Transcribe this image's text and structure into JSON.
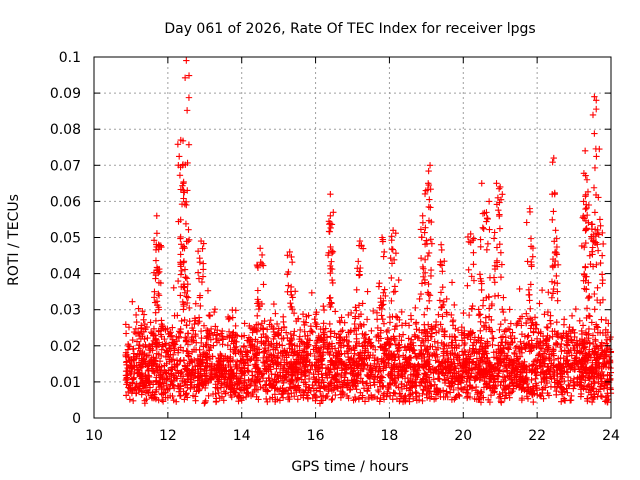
{
  "chart_data": {
    "type": "scatter",
    "title": "Day 061 of 2026, Rate Of TEC Index for receiver lpgs",
    "xlabel": "GPS time / hours",
    "ylabel": "ROTI / TECUs",
    "xlim": [
      10,
      24
    ],
    "ylim": [
      0,
      0.1
    ],
    "x_ticks": [
      "10",
      "12",
      "14",
      "16",
      "18",
      "20",
      "22",
      "24"
    ],
    "y_ticks": [
      "0",
      "0.01",
      "0.02",
      "0.03",
      "0.04",
      "0.05",
      "0.06",
      "0.07",
      "0.08",
      "0.09",
      "0.1"
    ],
    "grid": true,
    "marker": "+",
    "series_color": "#ff0000",
    "x_start": 10.85,
    "x_end": 24.0,
    "typical_range": [
      0.004,
      0.03
    ],
    "peaks": [
      {
        "x": 12.5,
        "y": 0.099
      },
      {
        "x": 12.35,
        "y": 0.077
      },
      {
        "x": 12.4,
        "y": 0.07
      },
      {
        "x": 12.42,
        "y": 0.065
      },
      {
        "x": 12.5,
        "y": 0.059
      },
      {
        "x": 11.7,
        "y": 0.056
      },
      {
        "x": 11.75,
        "y": 0.048
      },
      {
        "x": 12.9,
        "y": 0.049
      },
      {
        "x": 14.5,
        "y": 0.047
      },
      {
        "x": 15.3,
        "y": 0.046
      },
      {
        "x": 16.4,
        "y": 0.062
      },
      {
        "x": 16.4,
        "y": 0.056
      },
      {
        "x": 17.2,
        "y": 0.049
      },
      {
        "x": 17.8,
        "y": 0.05
      },
      {
        "x": 18.1,
        "y": 0.052
      },
      {
        "x": 18.9,
        "y": 0.056
      },
      {
        "x": 19.1,
        "y": 0.07
      },
      {
        "x": 19.05,
        "y": 0.065
      },
      {
        "x": 19.4,
        "y": 0.048
      },
      {
        "x": 20.2,
        "y": 0.051
      },
      {
        "x": 20.5,
        "y": 0.065
      },
      {
        "x": 20.7,
        "y": 0.06
      },
      {
        "x": 20.9,
        "y": 0.065
      },
      {
        "x": 21.0,
        "y": 0.064
      },
      {
        "x": 21.8,
        "y": 0.058
      },
      {
        "x": 22.45,
        "y": 0.072
      },
      {
        "x": 22.5,
        "y": 0.052
      },
      {
        "x": 23.3,
        "y": 0.074
      },
      {
        "x": 23.35,
        "y": 0.066
      },
      {
        "x": 23.4,
        "y": 0.059
      },
      {
        "x": 23.55,
        "y": 0.089
      },
      {
        "x": 23.6,
        "y": 0.088
      },
      {
        "x": 23.7,
        "y": 0.055
      }
    ]
  }
}
